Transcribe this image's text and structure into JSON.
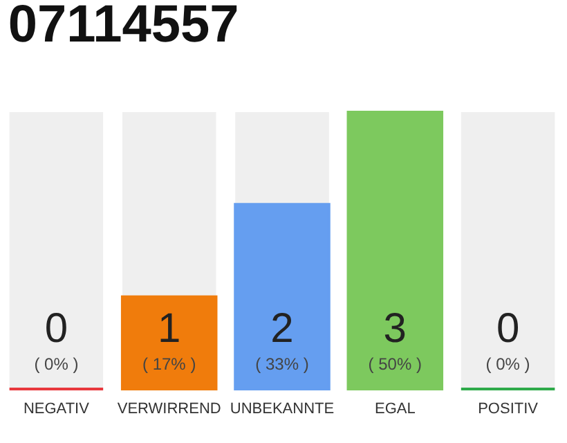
{
  "chart_data": {
    "type": "bar",
    "title": "07114557",
    "categories": [
      "NEGATIV",
      "VERWIRREND",
      "UNBEKANNTE",
      "EGAL",
      "POSITIV"
    ],
    "values": [
      0,
      1,
      2,
      3,
      0
    ],
    "colors": [
      "#e8383d",
      "#f07c0c",
      "#659ef0",
      "#7dc95e",
      "#2eaa4a"
    ],
    "tick_labels": "x",
    "grid": false,
    "data_labels": true,
    "annotations": [
      "( 0% )",
      "( 17% )",
      "( 33% )",
      "( 50% )",
      "( 0% )"
    ]
  }
}
